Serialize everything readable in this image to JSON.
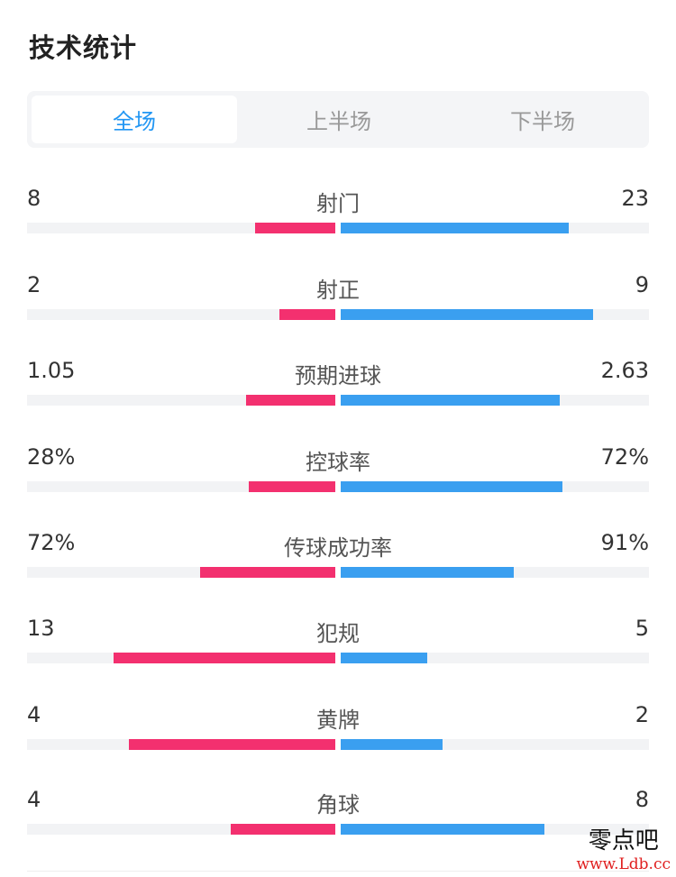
{
  "title": "技术统计",
  "tabs": [
    {
      "label": "全场",
      "active": true
    },
    {
      "label": "上半场",
      "active": false
    },
    {
      "label": "下半场",
      "active": false
    }
  ],
  "colors": {
    "home": "#f3306f",
    "away": "#3a9ff0",
    "active_tab": "#2196f3"
  },
  "stats": [
    {
      "label": "射门",
      "left": "8",
      "right": "23",
      "home_ratio": 0.26,
      "away_ratio": 0.74
    },
    {
      "label": "射正",
      "left": "2",
      "right": "9",
      "home_ratio": 0.18,
      "away_ratio": 0.82
    },
    {
      "label": "预期进球",
      "left": "1.05",
      "right": "2.63",
      "home_ratio": 0.29,
      "away_ratio": 0.71
    },
    {
      "label": "控球率",
      "left": "28%",
      "right": "72%",
      "home_ratio": 0.28,
      "away_ratio": 0.72
    },
    {
      "label": "传球成功率",
      "left": "72%",
      "right": "91%",
      "home_ratio": 0.44,
      "away_ratio": 0.56
    },
    {
      "label": "犯规",
      "left": "13",
      "right": "5",
      "home_ratio": 0.72,
      "away_ratio": 0.28
    },
    {
      "label": "黄牌",
      "left": "4",
      "right": "2",
      "home_ratio": 0.67,
      "away_ratio": 0.33
    },
    {
      "label": "角球",
      "left": "4",
      "right": "8",
      "home_ratio": 0.34,
      "away_ratio": 0.66
    }
  ],
  "watermark": {
    "name": "零点吧",
    "url": "www.Ldb.cc"
  }
}
